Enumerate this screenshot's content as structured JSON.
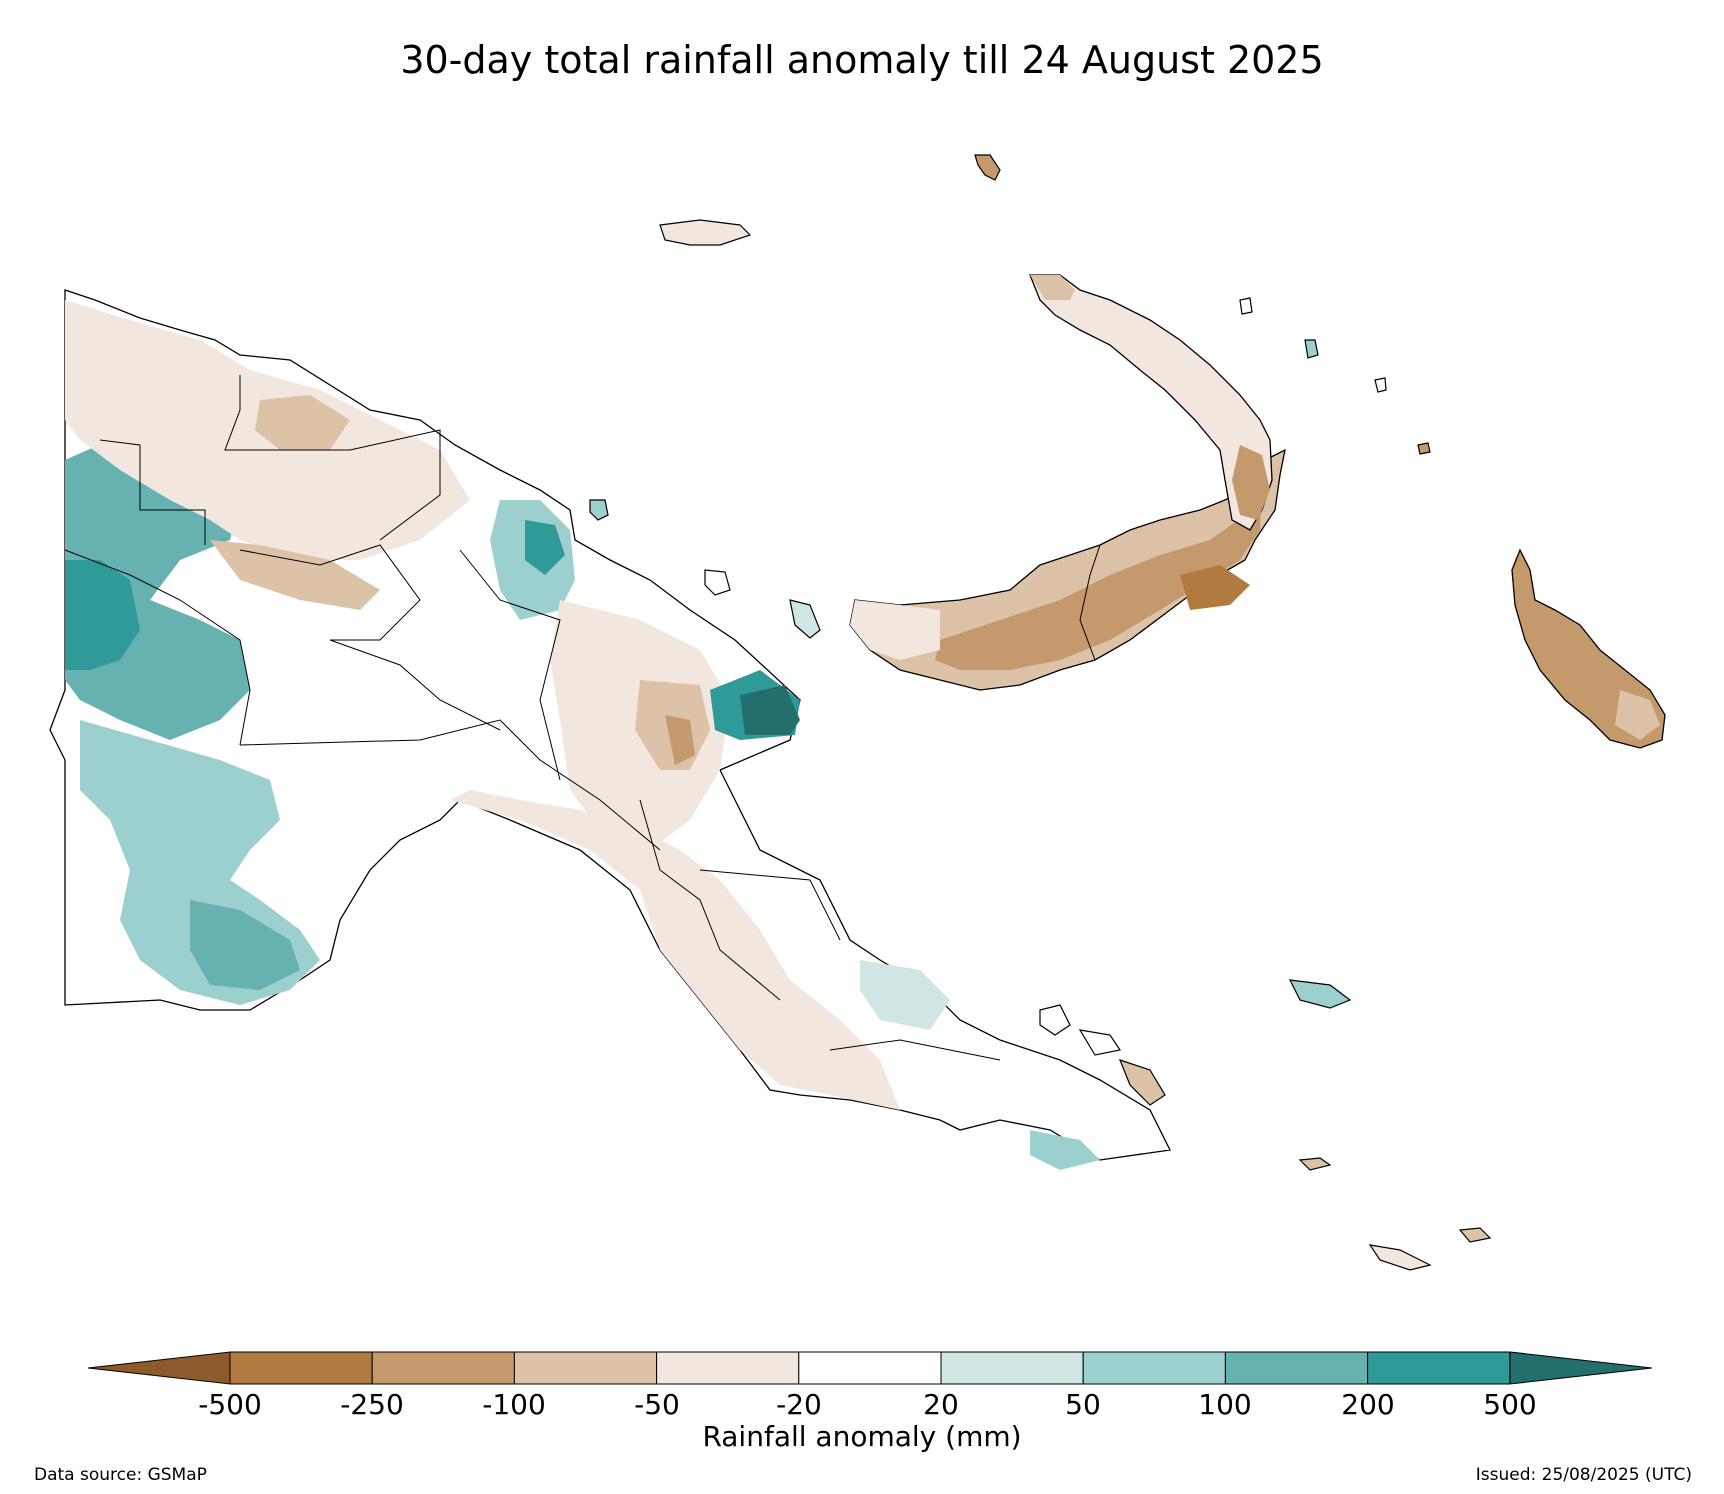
{
  "title": "30-day total rainfall anomaly till 24 August 2025",
  "legend": {
    "label": "Rainfall anomaly (mm)",
    "ticks": [
      "-500",
      "-250",
      "-100",
      "-50",
      "-20",
      "20",
      "50",
      "100",
      "200",
      "500"
    ],
    "colors": [
      "#8c5a2b",
      "#b07a40",
      "#c49a6c",
      "#dcc2a6",
      "#f1e7de",
      "#ffffff",
      "#cfe6e5",
      "#9cd0cf",
      "#65b2b0",
      "#2f9a97",
      "#236f6d"
    ]
  },
  "footer": {
    "source": "Data source: GSMaP",
    "issued": "Issued: 25/08/2025 (UTC)"
  }
}
